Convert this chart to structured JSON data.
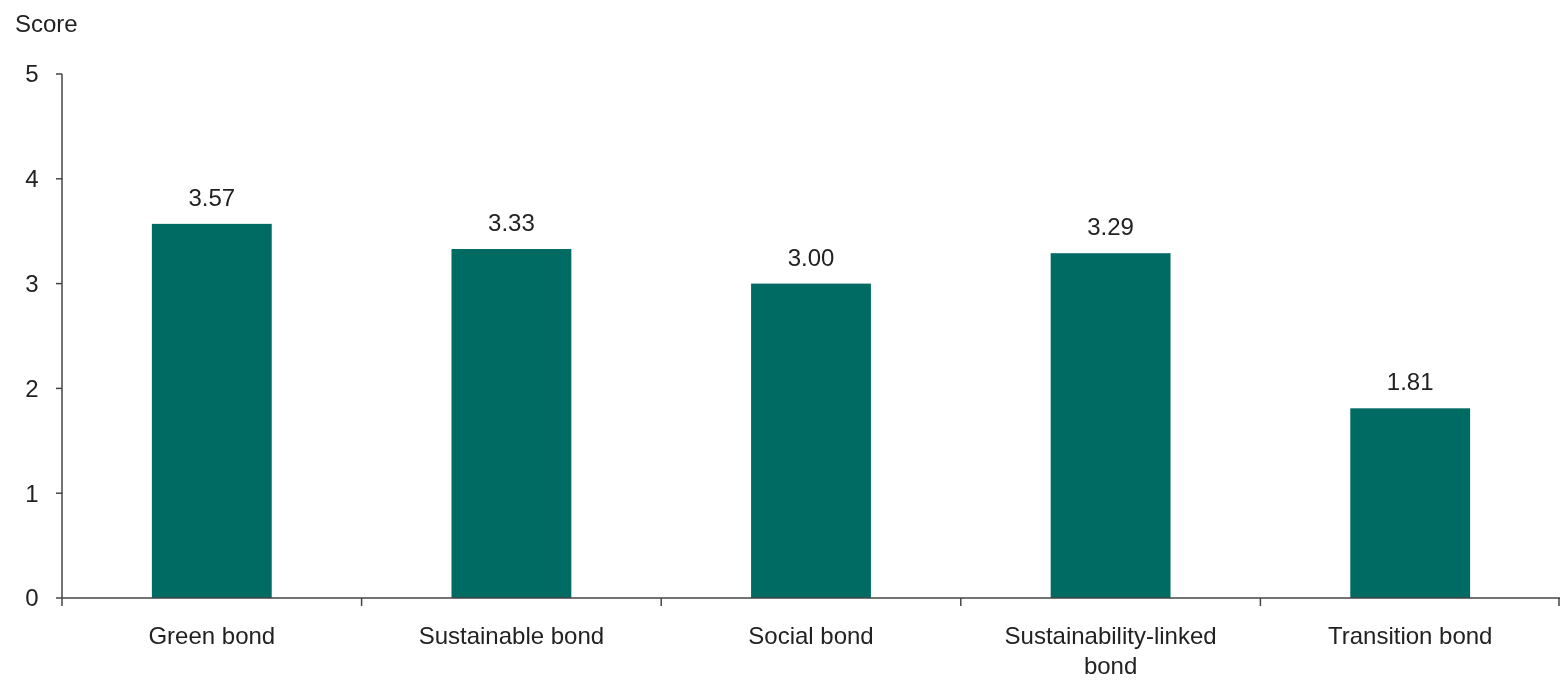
{
  "chart_data": {
    "type": "bar",
    "ylabel": "Score",
    "categories": [
      "Green bond",
      "Sustainable bond",
      "Social bond",
      "Sustainability-linked bond",
      "Transition bond"
    ],
    "values": [
      3.57,
      3.33,
      3.0,
      3.29,
      1.81
    ],
    "value_labels": [
      "3.57",
      "3.33",
      "3.00",
      "3.29",
      "1.81"
    ],
    "color": "#006b63",
    "ylim": [
      0,
      5
    ],
    "yticks": [
      0,
      1,
      2,
      3,
      4,
      5
    ],
    "grid": false
  }
}
